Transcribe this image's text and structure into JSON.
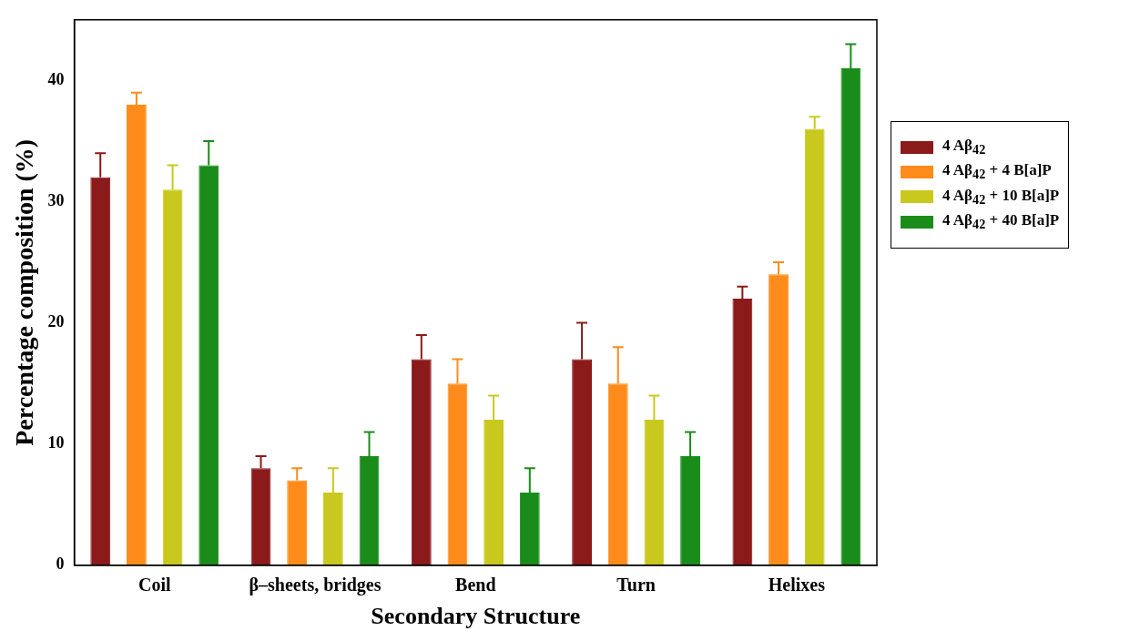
{
  "chart_data": {
    "type": "bar",
    "xlabel": "Secondary Structure",
    "ylabel": "Percentage composition (%)",
    "categories": [
      "Coil",
      "β–sheets, bridges",
      "Bend",
      "Turn",
      "Helixes"
    ],
    "series": [
      {
        "name": "4 Aβ$_{42}$",
        "color": "#8b1a1a",
        "values": [
          32,
          8,
          17,
          17,
          22
        ],
        "errors": [
          [
            32,
            34
          ],
          [
            8,
            9
          ],
          [
            17,
            19
          ],
          [
            17,
            20
          ],
          [
            22,
            23
          ]
        ]
      },
      {
        "name": "4 Aβ$_{42}$ + 4 B[a]P",
        "color": "#ff8c1a",
        "values": [
          38,
          7,
          15,
          15,
          24
        ],
        "errors": [
          [
            38,
            39
          ],
          [
            7,
            8
          ],
          [
            15,
            17
          ],
          [
            15,
            18
          ],
          [
            24,
            25
          ]
        ]
      },
      {
        "name": "4 Aβ$_{42}$ + 10 B[a]P",
        "color": "#c8c81e",
        "values": [
          31,
          6,
          12,
          12,
          36
        ],
        "errors": [
          [
            31,
            33
          ],
          [
            6,
            8
          ],
          [
            12,
            14
          ],
          [
            12,
            14
          ],
          [
            36,
            37
          ]
        ]
      },
      {
        "name": "4 Aβ$_{42}$ + 40 B[a]P",
        "color": "#1a8c1a",
        "values": [
          33,
          9,
          6,
          9,
          41
        ],
        "errors": [
          [
            33,
            35
          ],
          [
            9,
            11
          ],
          [
            6,
            8
          ],
          [
            9,
            11
          ],
          [
            41,
            43
          ]
        ]
      }
    ],
    "ylim": [
      0,
      45
    ],
    "yticks": [
      0,
      10,
      20,
      30,
      40
    ],
    "grid": false,
    "legend": "right"
  }
}
